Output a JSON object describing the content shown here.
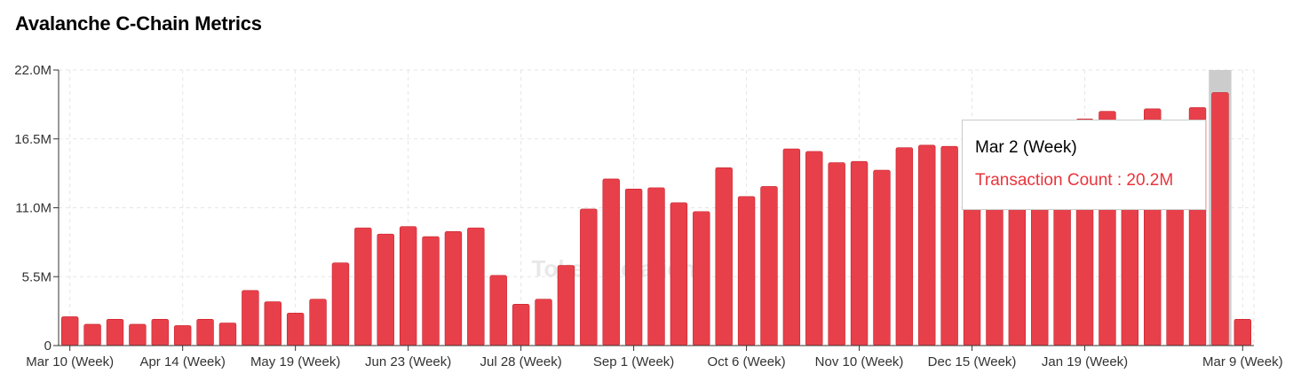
{
  "page_title": "Avalanche C-Chain Metrics",
  "watermark": "Token Relations",
  "colors": {
    "bar": "#e8404a",
    "bar_stroke": "#c8202a",
    "highlight_band": "#cccccc",
    "tooltip_value": "#e8343c",
    "grid": "#e5e5e5"
  },
  "tooltip": {
    "label": "Mar 2 (Week)",
    "value_text": "Transaction Count : 20.2M"
  },
  "chart_data": {
    "type": "bar",
    "title": "Avalanche C-Chain Metrics",
    "xlabel": "",
    "ylabel": "",
    "ylim": [
      0,
      22000000
    ],
    "yticks": [
      0,
      5500000,
      11000000,
      16500000,
      22000000
    ],
    "ytick_labels": [
      "0",
      "5.5M",
      "11.0M",
      "16.5M",
      "22.0M"
    ],
    "xtick_labels": [
      {
        "index": 0,
        "label": "Mar 10 (Week)"
      },
      {
        "index": 5,
        "label": "Apr 14 (Week)"
      },
      {
        "index": 10,
        "label": "May 19 (Week)"
      },
      {
        "index": 15,
        "label": "Jun 23 (Week)"
      },
      {
        "index": 20,
        "label": "Jul 28 (Week)"
      },
      {
        "index": 25,
        "label": "Sep 1 (Week)"
      },
      {
        "index": 30,
        "label": "Oct 6 (Week)"
      },
      {
        "index": 35,
        "label": "Nov 10 (Week)"
      },
      {
        "index": 40,
        "label": "Dec 15 (Week)"
      },
      {
        "index": 45,
        "label": "Jan 19 (Week)"
      },
      {
        "index": 52,
        "label": "Mar 9 (Week)"
      }
    ],
    "highlight_index": 51,
    "grid": true,
    "series": [
      {
        "name": "Transaction Count",
        "values": [
          2300000,
          1700000,
          2100000,
          1700000,
          2100000,
          1600000,
          2100000,
          1800000,
          4400000,
          3500000,
          2600000,
          3700000,
          6600000,
          9400000,
          8900000,
          9500000,
          8700000,
          9100000,
          9400000,
          5600000,
          3300000,
          3700000,
          6400000,
          10900000,
          13300000,
          12500000,
          12600000,
          11400000,
          10700000,
          14200000,
          11900000,
          12700000,
          15700000,
          15500000,
          14600000,
          14700000,
          14000000,
          15800000,
          16000000,
          15900000,
          15500000,
          15800000,
          16000000,
          16600000,
          17600000,
          18100000,
          18700000,
          17900000,
          18900000,
          17900000,
          19000000,
          20200000,
          2100000
        ]
      }
    ]
  }
}
